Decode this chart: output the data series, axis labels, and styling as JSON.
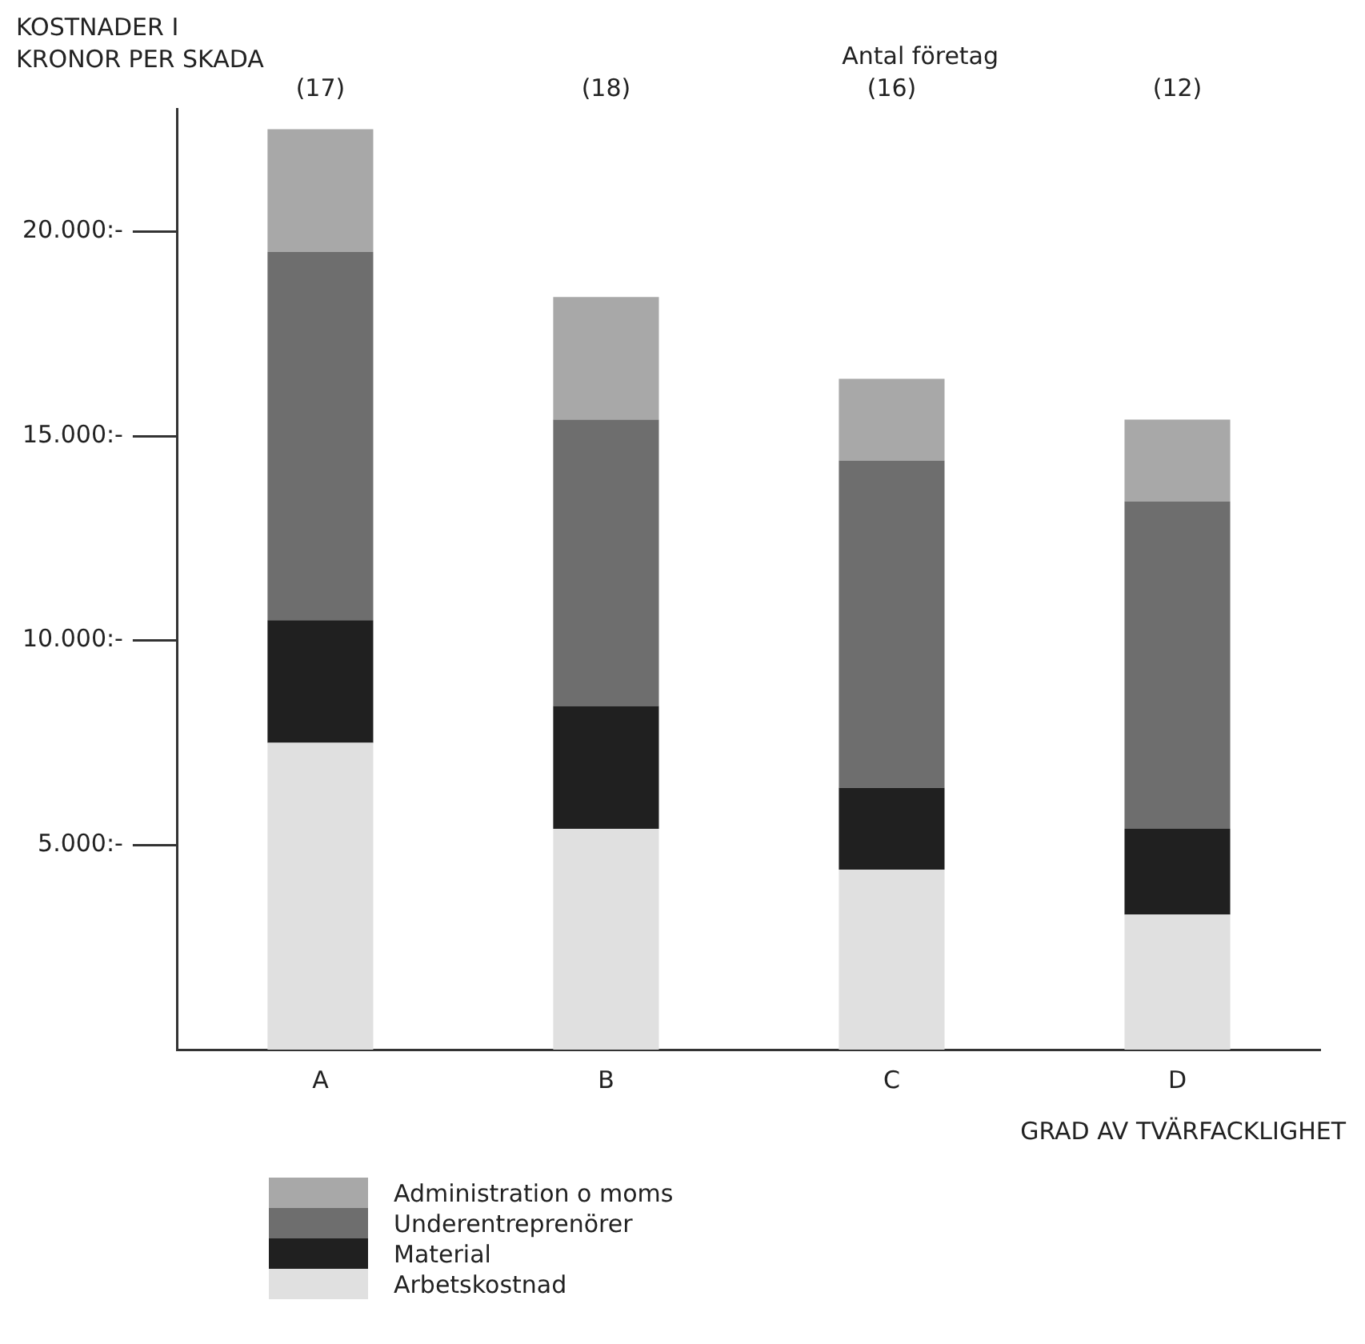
{
  "chart_data": {
    "type": "bar",
    "stacked": true,
    "ylabel": "KOSTNADER I\nKRONOR PER SKADA",
    "xlabel": "GRAD AV TVÄRFACKLIGHET",
    "categories": [
      "A",
      "B",
      "C",
      "D"
    ],
    "series": [
      {
        "name": "Arbetskostnad",
        "color": "#e0e0e0",
        "values": [
          7500,
          5400,
          4400,
          3300
        ]
      },
      {
        "name": "Material",
        "color": "#202020",
        "values": [
          3000,
          3000,
          2000,
          2100
        ]
      },
      {
        "name": "Underentreprenörer",
        "color": "#6e6e6e",
        "values": [
          9000,
          7000,
          8000,
          8000
        ]
      },
      {
        "name": "Administration o moms",
        "color": "#a8a8a8",
        "values": [
          3000,
          3000,
          2000,
          2000
        ]
      }
    ],
    "ylim": [
      0,
      23000
    ],
    "yticks": [
      {
        "value": 5000,
        "label": "5.000:-"
      },
      {
        "value": 10000,
        "label": "10.000:-"
      },
      {
        "value": 15000,
        "label": "15.000:-"
      },
      {
        "value": 20000,
        "label": "20.000:-"
      }
    ],
    "annotations": [
      "Antal företag",
      "(17)",
      "(18)",
      "(16)",
      "(12)"
    ],
    "legend": "bottom",
    "grid": false
  }
}
